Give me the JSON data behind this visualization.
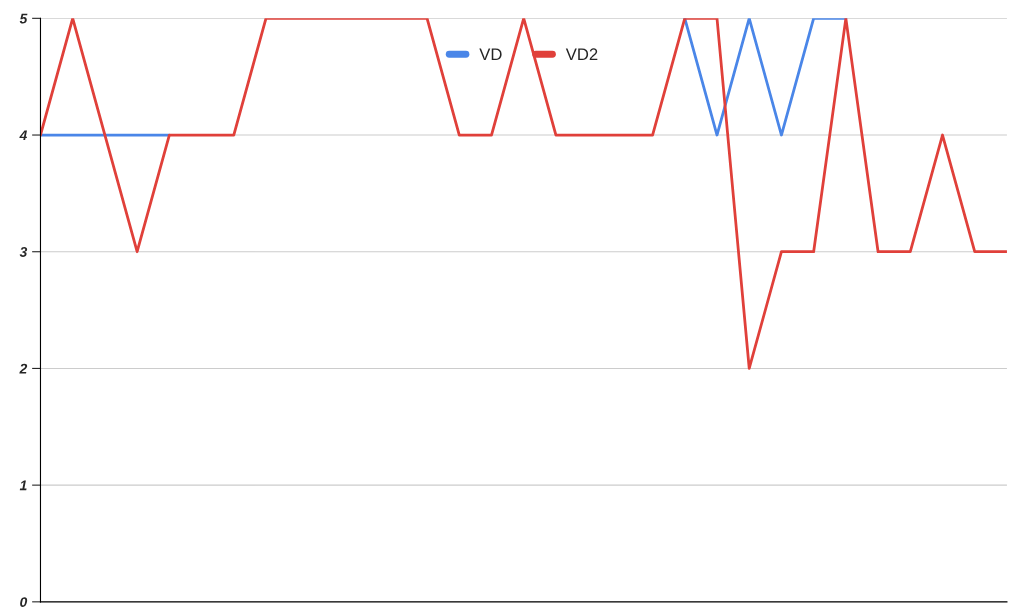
{
  "chart_data": {
    "type": "line",
    "categories": [
      null,
      null,
      null,
      null,
      null,
      null,
      null,
      null,
      null,
      null,
      null,
      null,
      null,
      null,
      null,
      null,
      null,
      null,
      null,
      null,
      null,
      null,
      null,
      null,
      null,
      null,
      null,
      null,
      null,
      null,
      null
    ],
    "series": [
      {
        "name": "VD",
        "color": "#4a86e8",
        "values": [
          4,
          4,
          4,
          4,
          4,
          null,
          null,
          null,
          null,
          null,
          null,
          null,
          null,
          null,
          null,
          null,
          null,
          null,
          null,
          null,
          5,
          4,
          5,
          4,
          5,
          5,
          null,
          null,
          null,
          null,
          null
        ]
      },
      {
        "name": "VD2",
        "color": "#e0403a",
        "values": [
          4,
          5,
          4,
          3,
          4,
          4,
          4,
          5,
          5,
          5,
          5,
          5,
          5,
          4,
          4,
          5,
          4,
          4,
          4,
          4,
          5,
          5,
          2,
          3,
          3,
          5,
          3,
          3,
          4,
          3,
          3
        ]
      }
    ],
    "ylim": [
      0,
      5
    ],
    "yticks": [
      0,
      1,
      2,
      3,
      4,
      5
    ],
    "grid": "y",
    "legend": "top",
    "marker": "none",
    "line_style": "solid",
    "tick_labels": "y"
  }
}
